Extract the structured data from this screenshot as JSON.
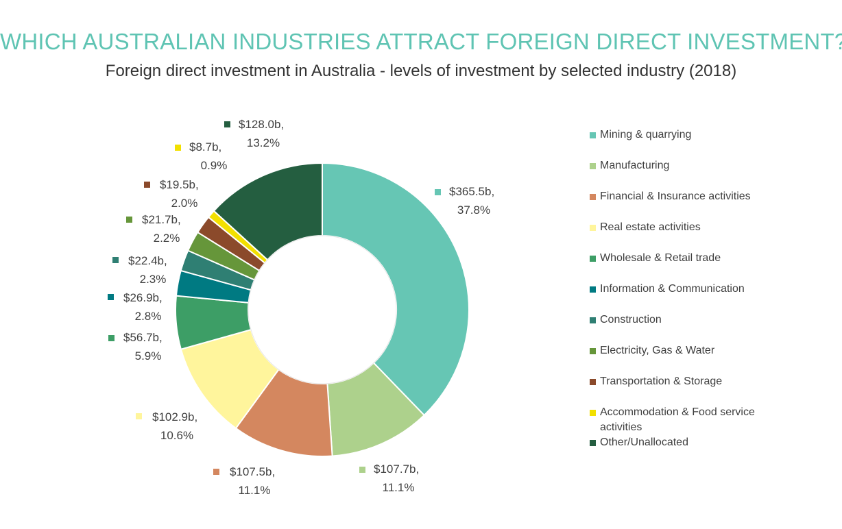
{
  "title": "WHICH AUSTRALIAN INDUSTRIES ATTRACT FOREIGN DIRECT INVESTMENT?",
  "subtitle": "Foreign direct investment in Australia - levels of investment by selected industry (2018)",
  "chart_data": {
    "type": "pie",
    "variant": "donut",
    "legend_position": "right",
    "slices": [
      {
        "name": "Mining & quarrying",
        "value": 365.5,
        "value_label": "$365.5b,",
        "percent_label": "37.8%",
        "color": "#66c6b4"
      },
      {
        "name": "Manufacturing",
        "value": 107.7,
        "value_label": "$107.7b,",
        "percent_label": "11.1%",
        "color": "#add18c"
      },
      {
        "name": "Financial & Insurance activities",
        "value": 107.5,
        "value_label": "$107.5b,",
        "percent_label": "11.1%",
        "color": "#d4875f"
      },
      {
        "name": "Real estate activities",
        "value": 102.9,
        "value_label": "$102.9b,",
        "percent_label": "10.6%",
        "color": "#fff59c"
      },
      {
        "name": "Wholesale & Retail trade",
        "value": 56.7,
        "value_label": "$56.7b,",
        "percent_label": "5.9%",
        "color": "#3d9e66"
      },
      {
        "name": "Information & Communication",
        "value": 26.9,
        "value_label": "$26.9b,",
        "percent_label": "2.8%",
        "color": "#007a82"
      },
      {
        "name": "Construction",
        "value": 22.4,
        "value_label": "$22.4b,",
        "percent_label": "2.3%",
        "color": "#2f7f73"
      },
      {
        "name": "Electricity, Gas & Water",
        "value": 21.7,
        "value_label": "$21.7b,",
        "percent_label": "2.2%",
        "color": "#66963a"
      },
      {
        "name": "Transportation & Storage",
        "value": 19.5,
        "value_label": "$19.5b,",
        "percent_label": "2.0%",
        "color": "#8b4a2b"
      },
      {
        "name": "Accommodation & Food service activities",
        "value": 8.7,
        "value_label": "$8.7b,",
        "percent_label": "0.9%",
        "color": "#f2e000"
      },
      {
        "name": "Other/Unallocated",
        "value": 128.0,
        "value_label": "$128.0b,",
        "percent_label": "13.2%",
        "color": "#245e40"
      }
    ]
  }
}
